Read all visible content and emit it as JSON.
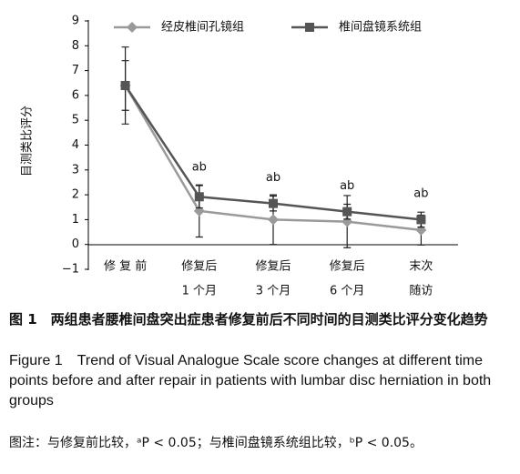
{
  "chart_data": {
    "type": "line",
    "y_label": "目测类比评分",
    "categories": [
      [
        "修 复 前"
      ],
      [
        "修复后",
        "1 个月"
      ],
      [
        "修复后",
        "3 个月"
      ],
      [
        "修复后",
        "6 个月"
      ],
      [
        "末次",
        "随访"
      ]
    ],
    "series": [
      {
        "name": "经皮椎间孔镜组",
        "color": "#9a9a9a",
        "marker": "diamond",
        "values": [
          6.4,
          1.35,
          1.0,
          0.92,
          0.58
        ],
        "errors": [
          1.0,
          1.05,
          1.0,
          1.05,
          0.6
        ]
      },
      {
        "name": "椎间盘镜系统组",
        "color": "#555555",
        "marker": "square",
        "values": [
          6.4,
          1.92,
          1.65,
          1.32,
          1.0
        ],
        "errors": [
          1.55,
          0.45,
          0.3,
          0.3,
          0.3
        ]
      }
    ],
    "annotations": [
      "ab",
      "ab",
      "ab",
      "ab"
    ],
    "ylim": [
      -1,
      9
    ],
    "yticks": [
      {
        "value": -1,
        "label": "−1"
      },
      0,
      1,
      2,
      3,
      4,
      5,
      6,
      7,
      8,
      9
    ]
  },
  "caption": {
    "title_cn": "图 1　两组患者腰椎间盘突出症患者修复前后不同时间的目测类比评分变化趋势",
    "title_en": "Figure 1　Trend of Visual Analogue Scale score changes at different time points before and after repair in patients with lumbar disc herniation in both groups",
    "note": "图注：与修复前比较，ᵃP < 0.05；与椎间盘镜系统组比较，ᵇP < 0.05。"
  }
}
